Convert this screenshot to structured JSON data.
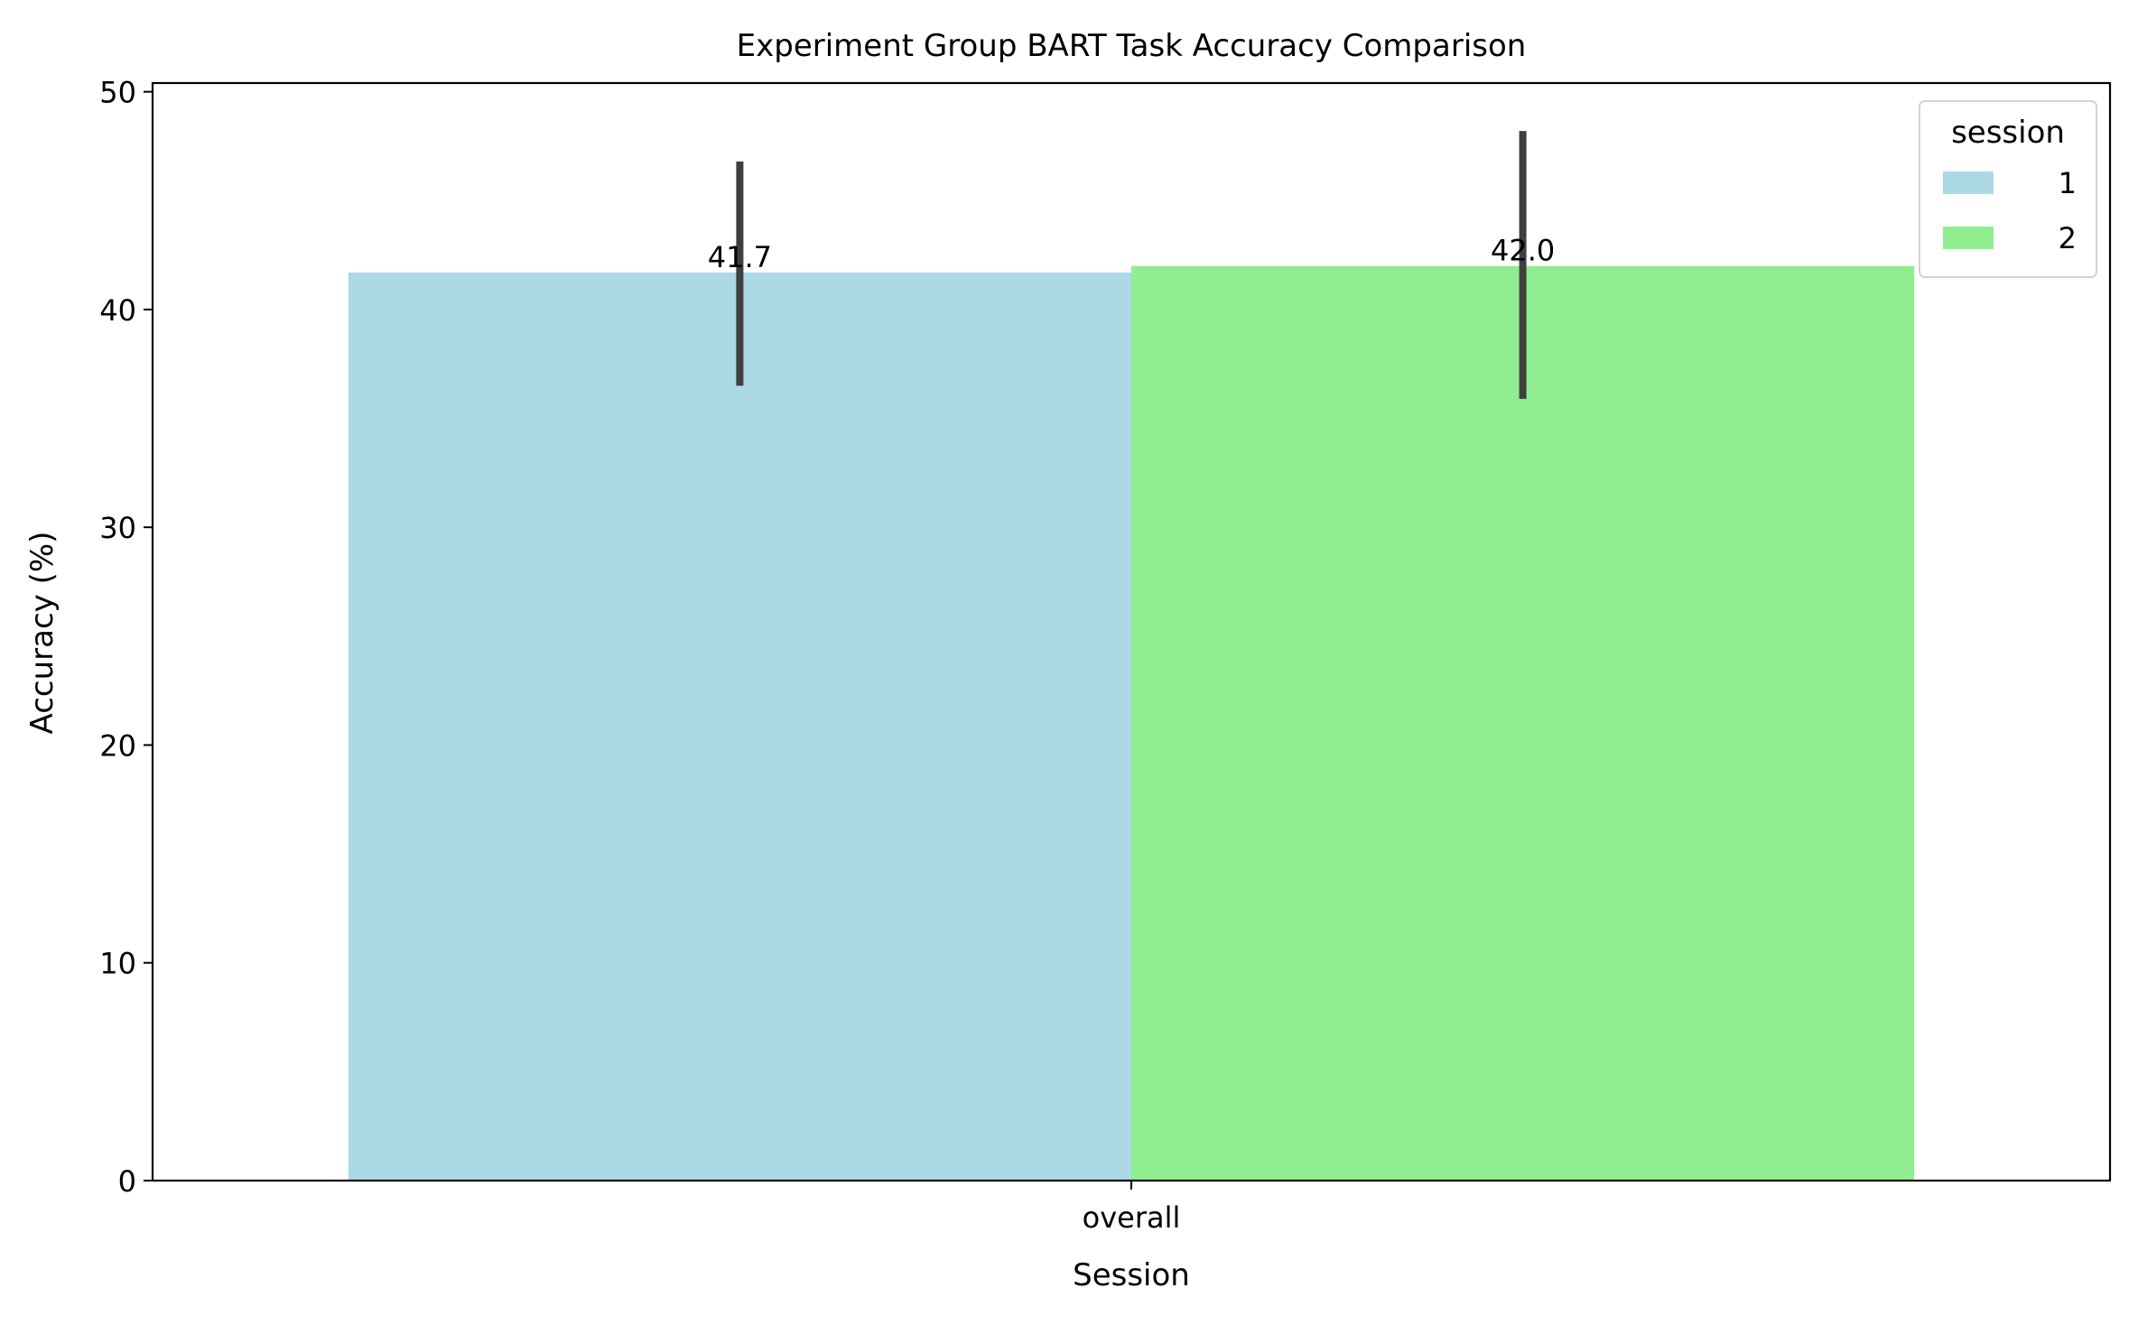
{
  "chart_data": {
    "type": "bar",
    "title": "Experiment Group BART Task Accuracy Comparison",
    "xlabel": "Session",
    "ylabel": "Accuracy (%)",
    "categories": [
      "overall"
    ],
    "ylim": [
      0,
      50.4
    ],
    "yticks": [
      0,
      10,
      20,
      30,
      40,
      50
    ],
    "grid": false,
    "legend": {
      "title": "session",
      "placement": "top-right"
    },
    "series": [
      {
        "name": "1",
        "color": "#add8e6",
        "values": [
          41.7
        ],
        "error_low": [
          36.5
        ],
        "error_high": [
          46.8
        ],
        "label": "41.7"
      },
      {
        "name": "2",
        "color": "#90ee90",
        "values": [
          42.0
        ],
        "error_low": [
          35.9
        ],
        "error_high": [
          48.2
        ],
        "label": "42.0"
      }
    ]
  }
}
